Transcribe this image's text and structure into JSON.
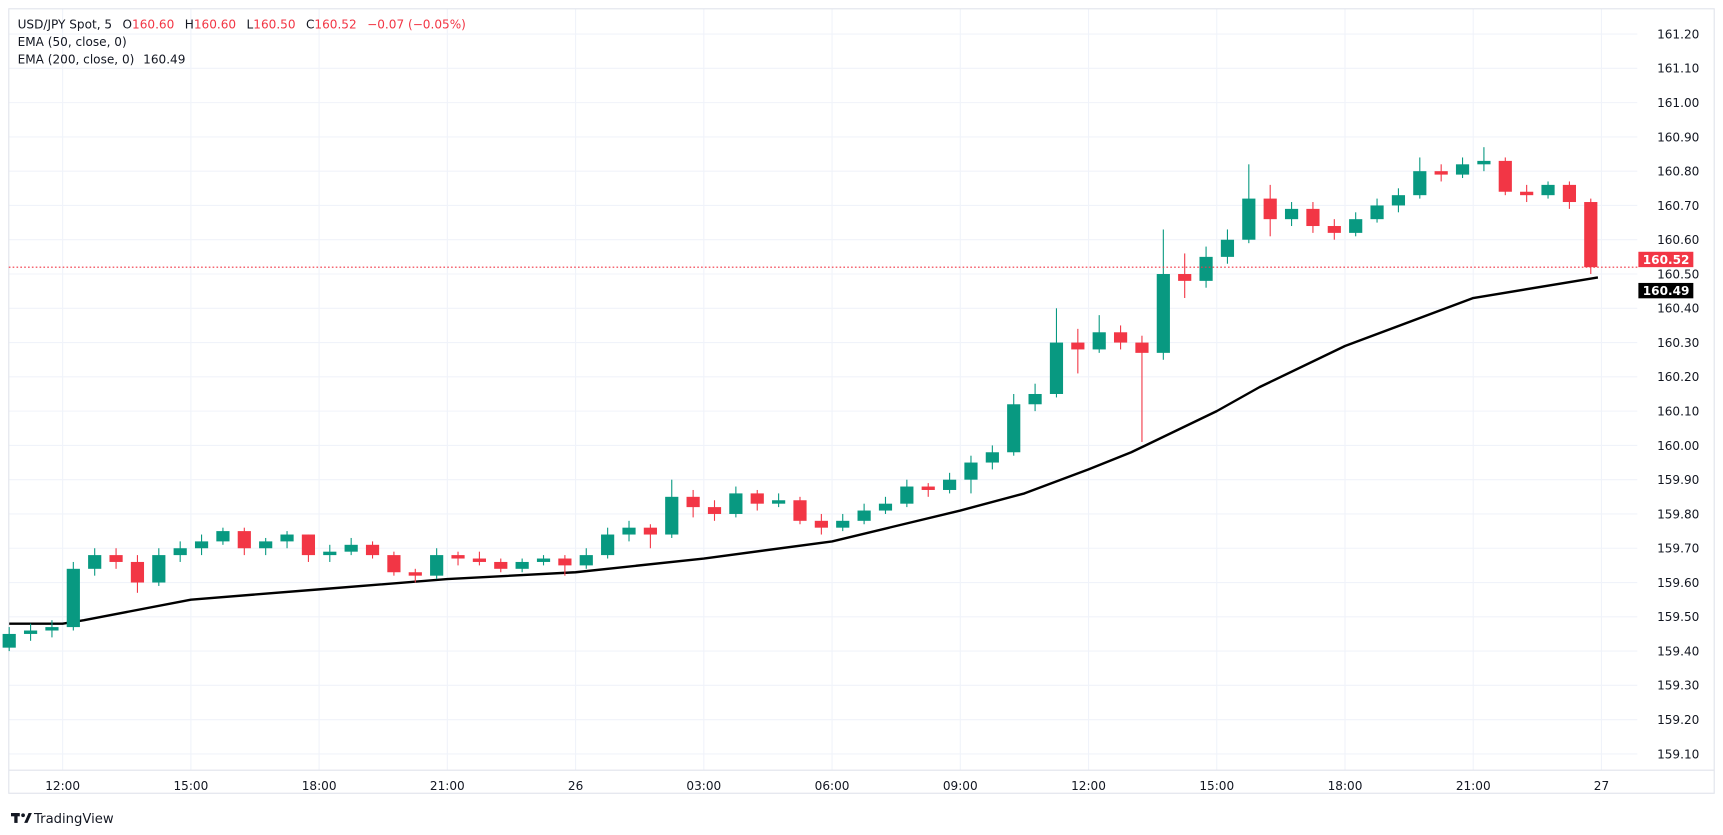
{
  "legend": {
    "symbol": "USD/JPY Spot, 5",
    "open_label": "O",
    "open": "160.60",
    "high_label": "H",
    "high": "160.60",
    "low_label": "L",
    "low": "160.50",
    "close_label": "C",
    "close": "160.52",
    "change": "−0.07 (−0.05%)",
    "ema50": "EMA (50, close, 0)",
    "ema200": "EMA (200, close, 0)",
    "ema200_value": "160.49"
  },
  "branding": {
    "logo_text": "TradingView"
  },
  "colors": {
    "up": "#089981",
    "down": "#F23645",
    "ema": "#000000",
    "grid": "#F0F3FA",
    "text": "#131722"
  },
  "chart_data": {
    "type": "candlestick",
    "title": "USD/JPY Spot, 5",
    "ylim": [
      159.05,
      161.25
    ],
    "grid": true,
    "y_ticks": [
      "161.20",
      "161.10",
      "161.00",
      "160.90",
      "160.80",
      "160.70",
      "160.60",
      "160.50",
      "160.40",
      "160.30",
      "160.20",
      "160.10",
      "160.00",
      "159.90",
      "159.80",
      "159.70",
      "159.60",
      "159.50",
      "159.40",
      "159.30",
      "159.20",
      "159.10"
    ],
    "x_ticks": [
      {
        "t": "25 12:00",
        "label": "12:00"
      },
      {
        "t": "25 15:00",
        "label": "15:00"
      },
      {
        "t": "25 18:00",
        "label": "18:00"
      },
      {
        "t": "25 21:00",
        "label": "21:00"
      },
      {
        "t": "26 00:00",
        "label": "26"
      },
      {
        "t": "26 03:00",
        "label": "03:00"
      },
      {
        "t": "26 06:00",
        "label": "06:00"
      },
      {
        "t": "26 09:00",
        "label": "09:00"
      },
      {
        "t": "26 12:00",
        "label": "12:00"
      },
      {
        "t": "26 15:00",
        "label": "15:00"
      },
      {
        "t": "26 18:00",
        "label": "18:00"
      },
      {
        "t": "26 21:00",
        "label": "21:00"
      },
      {
        "t": "27 00:00",
        "label": "27"
      }
    ],
    "last_price": {
      "value": 160.52,
      "label": "160.52"
    },
    "ema_price": {
      "value": 160.49,
      "label": "160.49"
    },
    "candles_ohlc": [
      [
        "25 10:30",
        159.41,
        159.47,
        159.4,
        159.45
      ],
      [
        "25 11:00",
        159.45,
        159.48,
        159.43,
        159.46
      ],
      [
        "25 11:30",
        159.46,
        159.49,
        159.44,
        159.47
      ],
      [
        "25 12:00",
        159.47,
        159.66,
        159.46,
        159.64
      ],
      [
        "25 12:30",
        159.64,
        159.7,
        159.62,
        159.68
      ],
      [
        "25 13:00",
        159.68,
        159.7,
        159.64,
        159.66
      ],
      [
        "25 13:30",
        159.66,
        159.68,
        159.57,
        159.6
      ],
      [
        "25 14:00",
        159.6,
        159.7,
        159.59,
        159.68
      ],
      [
        "25 14:30",
        159.68,
        159.72,
        159.66,
        159.7
      ],
      [
        "25 15:00",
        159.7,
        159.74,
        159.68,
        159.72
      ],
      [
        "25 15:30",
        159.72,
        159.76,
        159.71,
        159.75
      ],
      [
        "25 16:00",
        159.75,
        159.76,
        159.68,
        159.7
      ],
      [
        "25 16:30",
        159.7,
        159.73,
        159.68,
        159.72
      ],
      [
        "25 17:00",
        159.72,
        159.75,
        159.7,
        159.74
      ],
      [
        "25 17:30",
        159.74,
        159.74,
        159.66,
        159.68
      ],
      [
        "25 18:00",
        159.68,
        159.71,
        159.66,
        159.69
      ],
      [
        "25 18:30",
        159.69,
        159.73,
        159.68,
        159.71
      ],
      [
        "25 19:00",
        159.71,
        159.72,
        159.67,
        159.68
      ],
      [
        "25 19:30",
        159.68,
        159.69,
        159.62,
        159.63
      ],
      [
        "25 20:00",
        159.63,
        159.64,
        159.6,
        159.62
      ],
      [
        "25 20:30",
        159.62,
        159.7,
        159.61,
        159.68
      ],
      [
        "25 21:00",
        159.68,
        159.69,
        159.65,
        159.67
      ],
      [
        "25 21:30",
        159.67,
        159.69,
        159.65,
        159.66
      ],
      [
        "25 22:00",
        159.66,
        159.67,
        159.63,
        159.64
      ],
      [
        "25 22:30",
        159.64,
        159.67,
        159.63,
        159.66
      ],
      [
        "25 23:00",
        159.66,
        159.68,
        159.65,
        159.67
      ],
      [
        "25 23:30",
        159.67,
        159.68,
        159.62,
        159.65
      ],
      [
        "26 00:00",
        159.65,
        159.7,
        159.64,
        159.68
      ],
      [
        "26 00:30",
        159.68,
        159.76,
        159.67,
        159.74
      ],
      [
        "26 01:00",
        159.74,
        159.78,
        159.72,
        159.76
      ],
      [
        "26 01:30",
        159.76,
        159.77,
        159.7,
        159.74
      ],
      [
        "26 02:00",
        159.74,
        159.9,
        159.73,
        159.85
      ],
      [
        "26 02:30",
        159.85,
        159.87,
        159.79,
        159.82
      ],
      [
        "26 03:00",
        159.82,
        159.84,
        159.78,
        159.8
      ],
      [
        "26 03:30",
        159.8,
        159.88,
        159.79,
        159.86
      ],
      [
        "26 04:00",
        159.86,
        159.87,
        159.81,
        159.83
      ],
      [
        "26 04:30",
        159.83,
        159.86,
        159.82,
        159.84
      ],
      [
        "26 05:00",
        159.84,
        159.85,
        159.77,
        159.78
      ],
      [
        "26 05:30",
        159.78,
        159.8,
        159.74,
        159.76
      ],
      [
        "26 06:00",
        159.76,
        159.8,
        159.75,
        159.78
      ],
      [
        "26 06:30",
        159.78,
        159.83,
        159.77,
        159.81
      ],
      [
        "26 07:00",
        159.81,
        159.85,
        159.8,
        159.83
      ],
      [
        "26 07:30",
        159.83,
        159.9,
        159.82,
        159.88
      ],
      [
        "26 08:00",
        159.88,
        159.89,
        159.85,
        159.87
      ],
      [
        "26 08:30",
        159.87,
        159.92,
        159.86,
        159.9
      ],
      [
        "26 09:00",
        159.9,
        159.97,
        159.86,
        159.95
      ],
      [
        "26 09:30",
        159.95,
        160.0,
        159.93,
        159.98
      ],
      [
        "26 10:00",
        159.98,
        160.15,
        159.97,
        160.12
      ],
      [
        "26 10:30",
        160.12,
        160.18,
        160.1,
        160.15
      ],
      [
        "26 11:00",
        160.15,
        160.4,
        160.14,
        160.3
      ],
      [
        "26 11:30",
        160.3,
        160.34,
        160.21,
        160.28
      ],
      [
        "26 12:00",
        160.28,
        160.38,
        160.27,
        160.33
      ],
      [
        "26 12:30",
        160.33,
        160.35,
        160.28,
        160.3
      ],
      [
        "26 13:00",
        160.3,
        160.32,
        160.01,
        160.27
      ],
      [
        "26 13:30",
        160.27,
        160.63,
        160.25,
        160.5
      ],
      [
        "26 14:00",
        160.5,
        160.56,
        160.43,
        160.48
      ],
      [
        "26 14:30",
        160.48,
        160.58,
        160.46,
        160.55
      ],
      [
        "26 15:00",
        160.55,
        160.63,
        160.53,
        160.6
      ],
      [
        "26 15:30",
        160.6,
        160.82,
        160.59,
        160.72
      ],
      [
        "26 16:00",
        160.72,
        160.76,
        160.61,
        160.66
      ],
      [
        "26 16:30",
        160.66,
        160.71,
        160.64,
        160.69
      ],
      [
        "26 17:00",
        160.69,
        160.71,
        160.62,
        160.64
      ],
      [
        "26 17:30",
        160.64,
        160.66,
        160.6,
        160.62
      ],
      [
        "26 18:00",
        160.62,
        160.68,
        160.61,
        160.66
      ],
      [
        "26 18:30",
        160.66,
        160.72,
        160.65,
        160.7
      ],
      [
        "26 19:00",
        160.7,
        160.75,
        160.68,
        160.73
      ],
      [
        "26 19:30",
        160.73,
        160.84,
        160.72,
        160.8
      ],
      [
        "26 20:00",
        160.8,
        160.82,
        160.77,
        160.79
      ],
      [
        "26 20:30",
        160.79,
        160.84,
        160.78,
        160.82
      ],
      [
        "26 21:00",
        160.82,
        160.87,
        160.8,
        160.83
      ],
      [
        "26 21:30",
        160.83,
        160.84,
        160.73,
        160.74
      ],
      [
        "26 22:00",
        160.74,
        160.76,
        160.71,
        160.73
      ],
      [
        "26 22:30",
        160.73,
        160.77,
        160.72,
        160.76
      ],
      [
        "26 23:00",
        160.76,
        160.77,
        160.69,
        160.71
      ],
      [
        "26 23:30",
        160.71,
        160.72,
        160.5,
        160.52
      ]
    ],
    "series": [
      {
        "name": "EMA (200, close, 0)",
        "points": [
          [
            "25 10:45",
            159.48
          ],
          [
            "25 12:00",
            159.48
          ],
          [
            "25 12:30",
            159.49
          ],
          [
            "25 15:00",
            159.55
          ],
          [
            "25 18:00",
            159.58
          ],
          [
            "25 21:00",
            159.61
          ],
          [
            "26 00:00",
            159.63
          ],
          [
            "26 03:00",
            159.67
          ],
          [
            "26 06:00",
            159.72
          ],
          [
            "26 09:00",
            159.81
          ],
          [
            "26 10:30",
            159.86
          ],
          [
            "26 12:00",
            159.93
          ],
          [
            "26 13:00",
            159.98
          ],
          [
            "26 15:00",
            160.1
          ],
          [
            "26 16:00",
            160.17
          ],
          [
            "26 18:00",
            160.29
          ],
          [
            "26 21:00",
            160.43
          ],
          [
            "26 23:55",
            160.49
          ]
        ]
      }
    ]
  }
}
